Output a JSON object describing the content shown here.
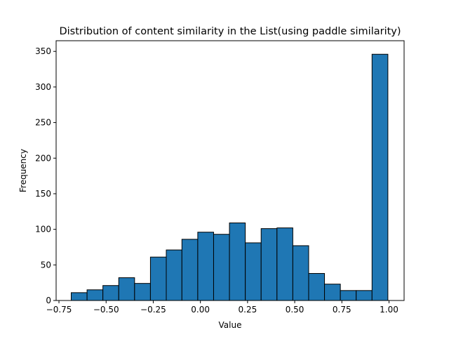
{
  "chart_data": {
    "type": "bar",
    "title": "Distribution of content similarity in the List(using paddle similarity)",
    "xlabel": "Value",
    "ylabel": "Frequency",
    "xlim": [
      -0.765,
      1.08
    ],
    "ylim": [
      0,
      365
    ],
    "xticks": [
      -0.75,
      -0.5,
      -0.25,
      0.0,
      0.25,
      0.5,
      0.75,
      1.0
    ],
    "xtick_labels": [
      "−0.75",
      "−0.50",
      "−0.25",
      "0.00",
      "0.25",
      "0.50",
      "0.75",
      "1.00"
    ],
    "yticks": [
      0,
      50,
      100,
      150,
      200,
      250,
      300,
      350
    ],
    "ytick_labels": [
      "0",
      "50",
      "100",
      "150",
      "200",
      "250",
      "300",
      "350"
    ],
    "bin_edges": [
      -0.685,
      -0.601,
      -0.517,
      -0.433,
      -0.349,
      -0.265,
      -0.181,
      -0.098,
      -0.014,
      0.07,
      0.154,
      0.238,
      0.322,
      0.406,
      0.49,
      0.574,
      0.658,
      0.742,
      0.826,
      0.91,
      0.994
    ],
    "values": [
      11,
      15,
      21,
      32,
      24,
      61,
      71,
      86,
      96,
      93,
      109,
      81,
      101,
      102,
      77,
      38,
      23,
      14,
      14,
      346
    ],
    "bar_color": "#1f77b4",
    "edge_color": "#000000",
    "grid": false
  }
}
